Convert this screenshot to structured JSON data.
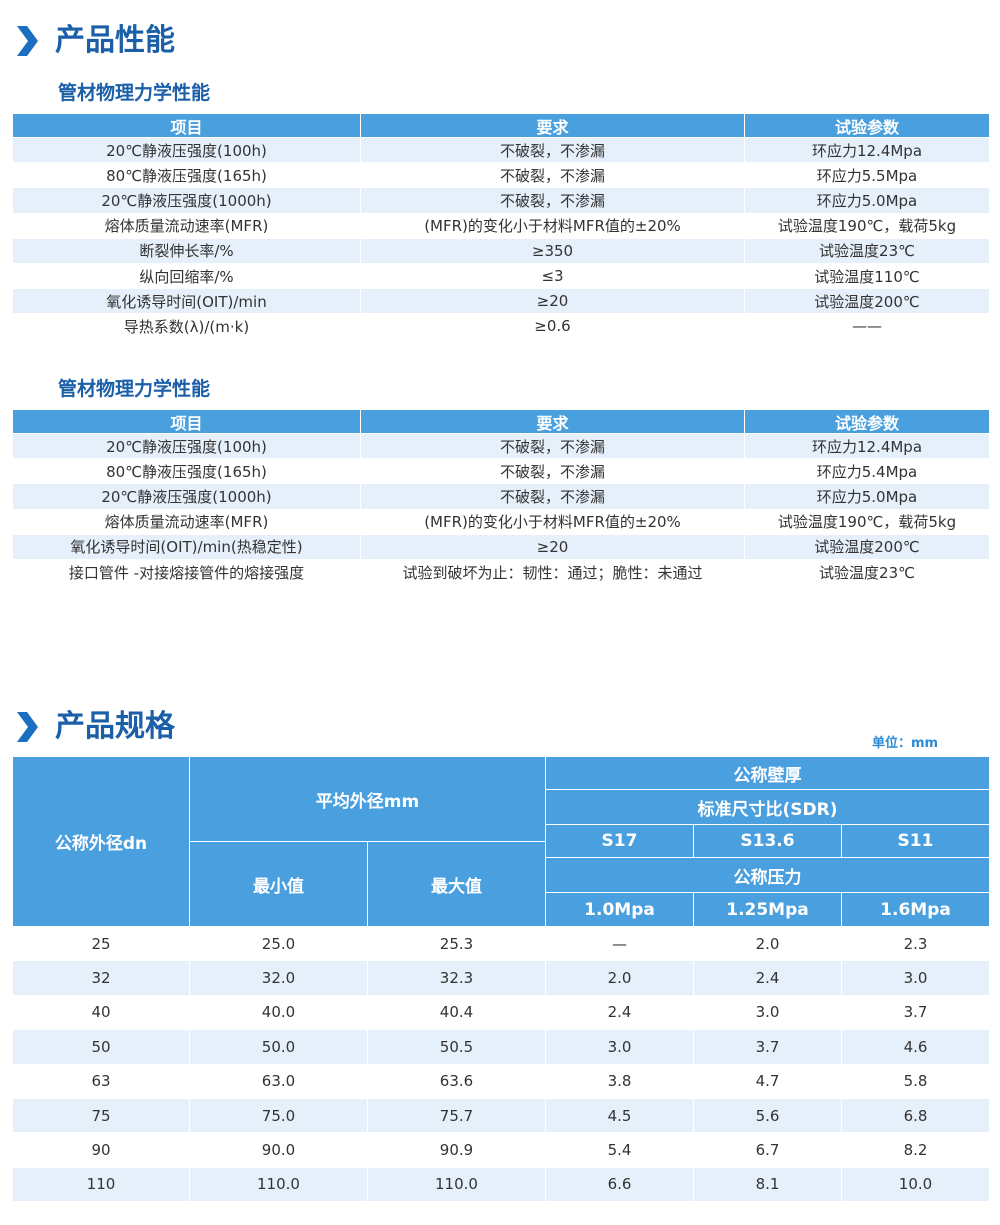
{
  "performance": {
    "title": "产品性能",
    "tables": [
      {
        "subtitle": "管材物理力学性能",
        "header": [
          "项目",
          "要求",
          "试验参数"
        ],
        "rows": [
          [
            "20℃静液压强度(100h)",
            "不破裂，不渗漏",
            "环应力12.4Mpa"
          ],
          [
            "80℃静液压强度(165h)",
            "不破裂，不渗漏",
            "环应力5.5Mpa"
          ],
          [
            "20℃静液压强度(1000h)",
            "不破裂，不渗漏",
            "环应力5.0Mpa"
          ],
          [
            "熔体质量流动速率(MFR)",
            "(MFR)的变化小于材料MFR值的±20%",
            "试验温度190℃，载荷5kg"
          ],
          [
            "断裂伸长率/%",
            "≥350",
            "试验温度23℃"
          ],
          [
            "纵向回缩率/%",
            "≤3",
            "试验温度110℃"
          ],
          [
            "氧化诱导时间(OIT)/min",
            "≥20",
            "试验温度200℃"
          ],
          [
            "导热系数(λ)/(m·k)",
            "≥0.6",
            "——"
          ]
        ]
      },
      {
        "subtitle": "管材物理力学性能",
        "header": [
          "项目",
          "要求",
          "试验参数"
        ],
        "rows": [
          [
            "20℃静液压强度(100h)",
            "不破裂，不渗漏",
            "环应力12.4Mpa"
          ],
          [
            "80℃静液压强度(165h)",
            "不破裂，不渗漏",
            "环应力5.4Mpa"
          ],
          [
            "20℃静液压强度(1000h)",
            "不破裂，不渗漏",
            "环应力5.0Mpa"
          ],
          [
            "熔体质量流动速率(MFR)",
            "(MFR)的变化小于材料MFR值的±20%",
            "试验温度190℃，载荷5kg"
          ],
          [
            "氧化诱导时间(OIT)/min(热稳定性)",
            "≥20",
            "试验温度200℃"
          ],
          [
            "接口管件 -对接熔接管件的熔接强度",
            "试验到破坏为止：韧性：通过；脆性：未通过",
            "试验温度23℃"
          ]
        ]
      }
    ]
  },
  "specs": {
    "title": "产品规格",
    "unit": "单位：mm",
    "header": {
      "dn": "公称外径dn",
      "avg": "平均外径mm",
      "min": "最小值",
      "max": "最大值",
      "wall": "公称壁厚",
      "sdr": "标准尺寸比(SDR)",
      "series": [
        "S17",
        "S13.6",
        "S11"
      ],
      "pressure_title": "公称压力",
      "pressures": [
        "1.0Mpa",
        "1.25Mpa",
        "1.6Mpa"
      ]
    },
    "rows": [
      [
        "25",
        "25.0",
        "25.3",
        "—",
        "2.0",
        "2.3"
      ],
      [
        "32",
        "32.0",
        "32.3",
        "2.0",
        "2.4",
        "3.0"
      ],
      [
        "40",
        "40.0",
        "40.4",
        "2.4",
        "3.0",
        "3.7"
      ],
      [
        "50",
        "50.0",
        "50.5",
        "3.0",
        "3.7",
        "4.6"
      ],
      [
        "63",
        "63.0",
        "63.6",
        "3.8",
        "4.7",
        "5.8"
      ],
      [
        "75",
        "75.0",
        "75.7",
        "4.5",
        "5.6",
        "6.8"
      ],
      [
        "90",
        "90.0",
        "90.9",
        "5.4",
        "6.7",
        "8.2"
      ],
      [
        "110",
        "110.0",
        "110.0",
        "6.6",
        "8.1",
        "10.0"
      ]
    ]
  }
}
